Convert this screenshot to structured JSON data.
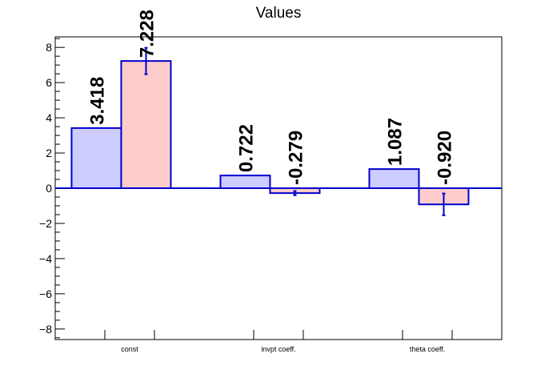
{
  "chart_data": {
    "type": "bar",
    "title": "Values",
    "xlabel": "",
    "ylabel": "",
    "categories": [
      "const",
      "invpt coeff.",
      "theta coeff."
    ],
    "series": [
      {
        "values": [
          3.418,
          0.722,
          1.087
        ],
        "labels": [
          "3.418",
          "0.722",
          "1.087"
        ],
        "errors": [
          0,
          0,
          0
        ],
        "fill": "#ccccff",
        "stroke": "#0000cc"
      },
      {
        "values": [
          7.228,
          -0.279,
          -0.92
        ],
        "labels": [
          "7.228",
          "-0.279",
          "-0.920"
        ],
        "errors": [
          0.75,
          0.12,
          0.62
        ],
        "fill": "#ffcccc",
        "stroke": "#0000cc"
      }
    ],
    "ylim": [
      -8.6,
      8.6
    ],
    "yticks": [
      -8,
      -6,
      -4,
      -2,
      0,
      2,
      4,
      6,
      8
    ],
    "ytick_labels": [
      "−8",
      "−6",
      "−4",
      "−2",
      "0",
      "2",
      "4",
      "6",
      "8"
    ],
    "grid": false,
    "legend": "none",
    "colors": {
      "axis": "#000000",
      "zero_line": "#0000cc",
      "error_bar": "#0000cc"
    }
  }
}
